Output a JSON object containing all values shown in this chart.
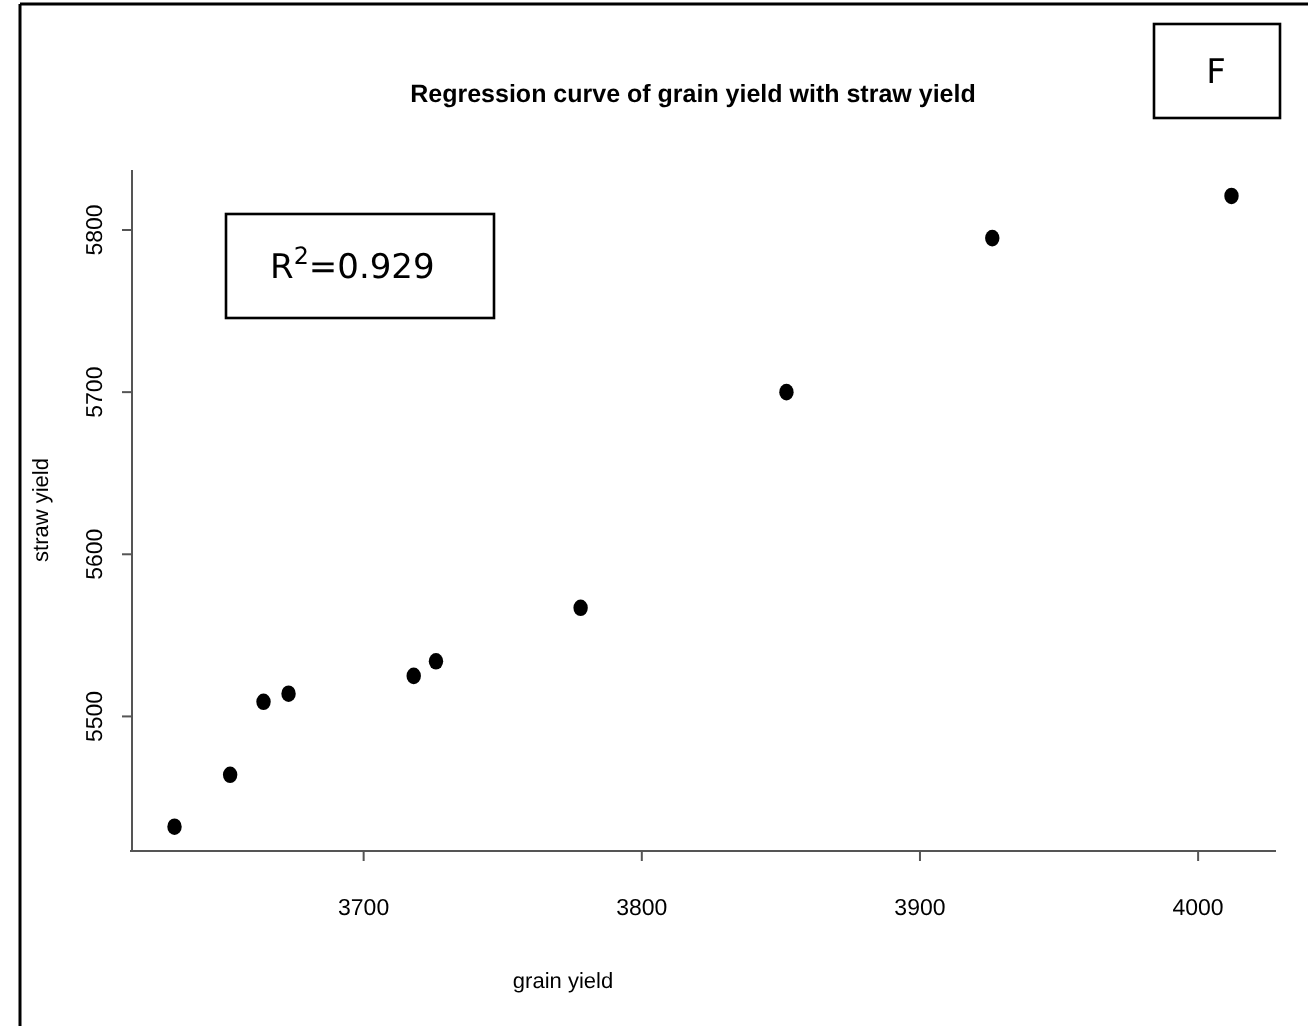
{
  "chart_data": {
    "type": "scatter",
    "title": "Regression curve of grain yield with straw yield",
    "xlabel": "grain yield",
    "ylabel": "straw yield",
    "annotations": [
      "R$^{2}$=0.929",
      "F"
    ],
    "x": [
      3632,
      3652,
      3664,
      3673,
      3718,
      3726,
      3778,
      3852,
      3926,
      4012
    ],
    "values": [
      5432,
      5464,
      5509,
      5514,
      5525,
      5534,
      5567,
      5700,
      5795,
      5821
    ],
    "color": "#000000",
    "marker": "circle",
    "xlim": [
      3616,
      4028
    ],
    "ylim": [
      5417,
      5837
    ],
    "xticks": [
      3700,
      3800,
      3900,
      4000
    ],
    "yticks": [
      5500,
      5600,
      5700,
      5800
    ],
    "grid": false
  }
}
